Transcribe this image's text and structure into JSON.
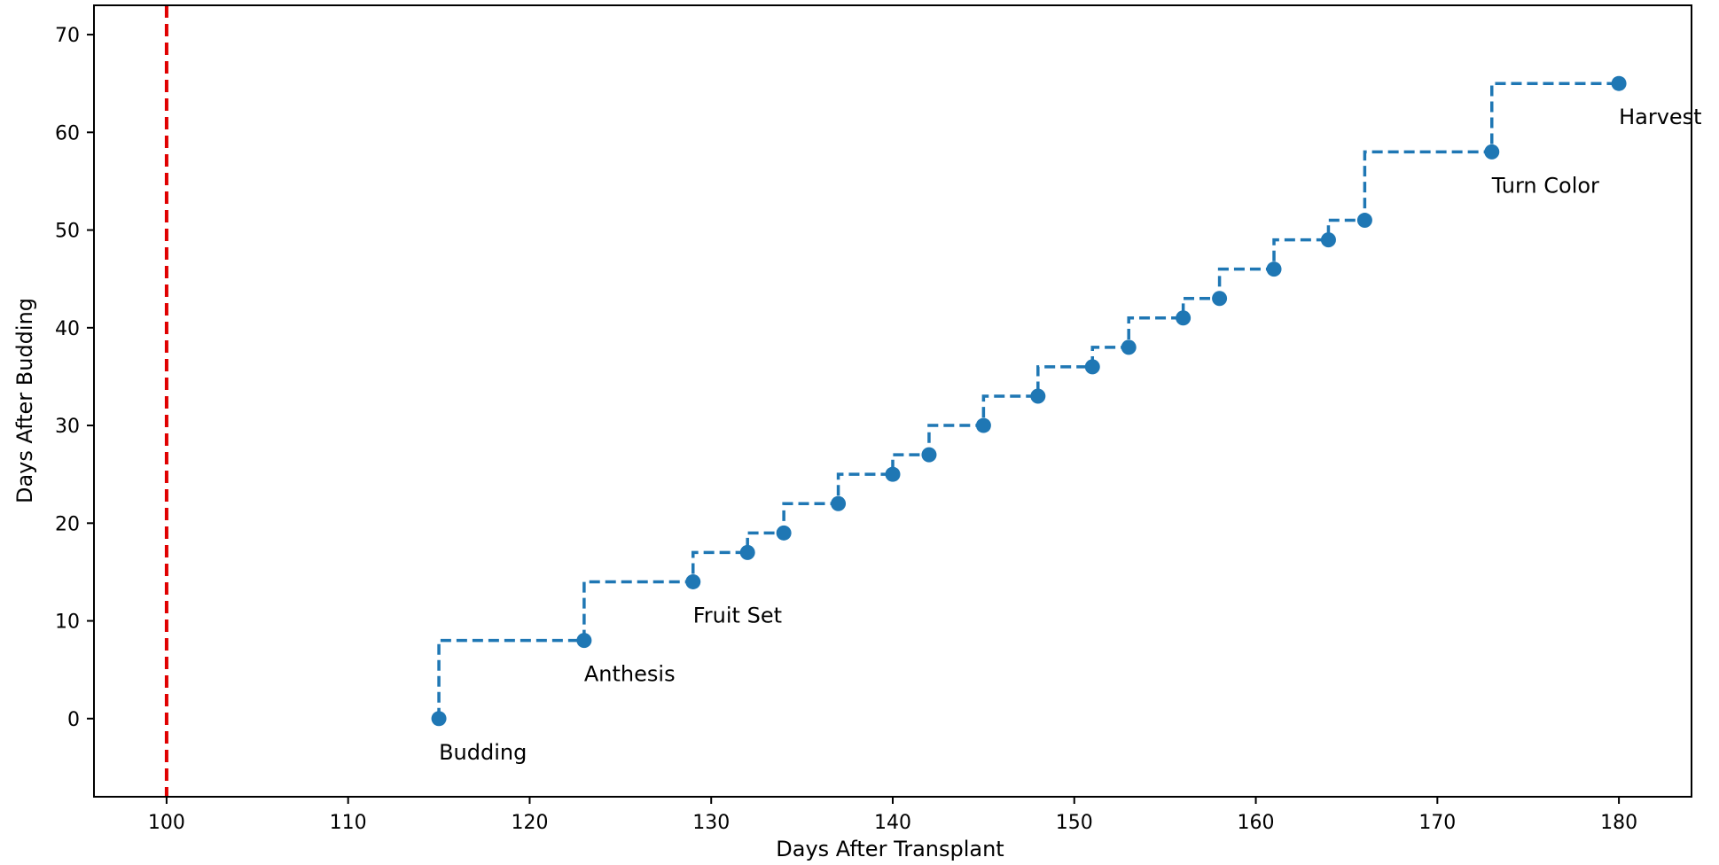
{
  "chart_data": {
    "type": "line",
    "title": "",
    "xlabel": "Days After Transplant",
    "ylabel": "Days After Budding",
    "xlim": [
      96,
      184
    ],
    "ylim": [
      -8,
      73
    ],
    "xticks": [
      100,
      110,
      120,
      130,
      140,
      150,
      160,
      170,
      180
    ],
    "yticks": [
      0,
      10,
      20,
      30,
      40,
      50,
      60,
      70
    ],
    "grid": false,
    "legend": "none",
    "colors": {
      "series": "#1f77b4",
      "reference_line": "#e00000",
      "axes": "#000000"
    },
    "series": [
      {
        "style": "steps-pre, dashed, circle markers",
        "x": [
          115,
          123,
          129,
          132,
          134,
          137,
          140,
          142,
          145,
          148,
          151,
          153,
          156,
          158,
          161,
          164,
          166,
          173,
          180
        ],
        "y": [
          0,
          8,
          14,
          17,
          19,
          22,
          25,
          27,
          30,
          33,
          36,
          38,
          41,
          43,
          46,
          49,
          51,
          58,
          65
        ]
      }
    ],
    "reference_lines": [
      {
        "orientation": "vertical",
        "x": 100,
        "style": "dashed"
      }
    ],
    "annotations": [
      {
        "text": "Budding",
        "x": 115,
        "y": 0
      },
      {
        "text": "Anthesis",
        "x": 123,
        "y": 8
      },
      {
        "text": "Fruit Set",
        "x": 129,
        "y": 14
      },
      {
        "text": "Turn Color",
        "x": 173,
        "y": 58
      },
      {
        "text": "Harvest",
        "x": 180,
        "y": 65
      }
    ]
  }
}
